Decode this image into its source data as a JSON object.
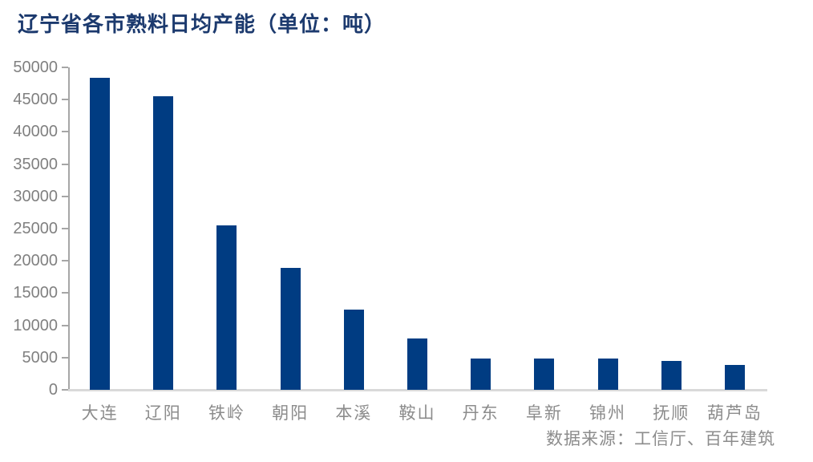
{
  "chart": {
    "title": "辽宁省各市熟料日均产能（单位：吨）",
    "source": "数据来源：工信厅、百年建筑"
  },
  "chart_data": {
    "type": "bar",
    "categories": [
      "大连",
      "辽阳",
      "铁岭",
      "朝阳",
      "本溪",
      "鞍山",
      "丹东",
      "阜新",
      "锦州",
      "抚顺",
      "葫芦岛"
    ],
    "values": [
      48400,
      45500,
      25500,
      18900,
      12500,
      8000,
      4900,
      4900,
      4900,
      4500,
      3900
    ],
    "title": "辽宁省各市熟料日均产能（单位：吨）",
    "xlabel": "",
    "ylabel": "",
    "ylim": [
      0,
      50000
    ],
    "ytick_step": 5000,
    "ytick_labels": [
      "0",
      "5000",
      "10000",
      "15000",
      "20000",
      "25000",
      "30000",
      "35000",
      "40000",
      "45000",
      "50000"
    ],
    "grid": false,
    "legend": false,
    "source": "数据来源：工信厅、百年建筑"
  },
  "colors": {
    "title_text": "#1c3a6e",
    "bar_fill": "#003c82",
    "y_label_text": "#808080",
    "x_label_text": "#8c8c8c",
    "source_text": "#8c8c8c",
    "y_axis_line": "#a6a6a6",
    "x_axis_line": "#d9d9d9",
    "background": "#ffffff"
  }
}
